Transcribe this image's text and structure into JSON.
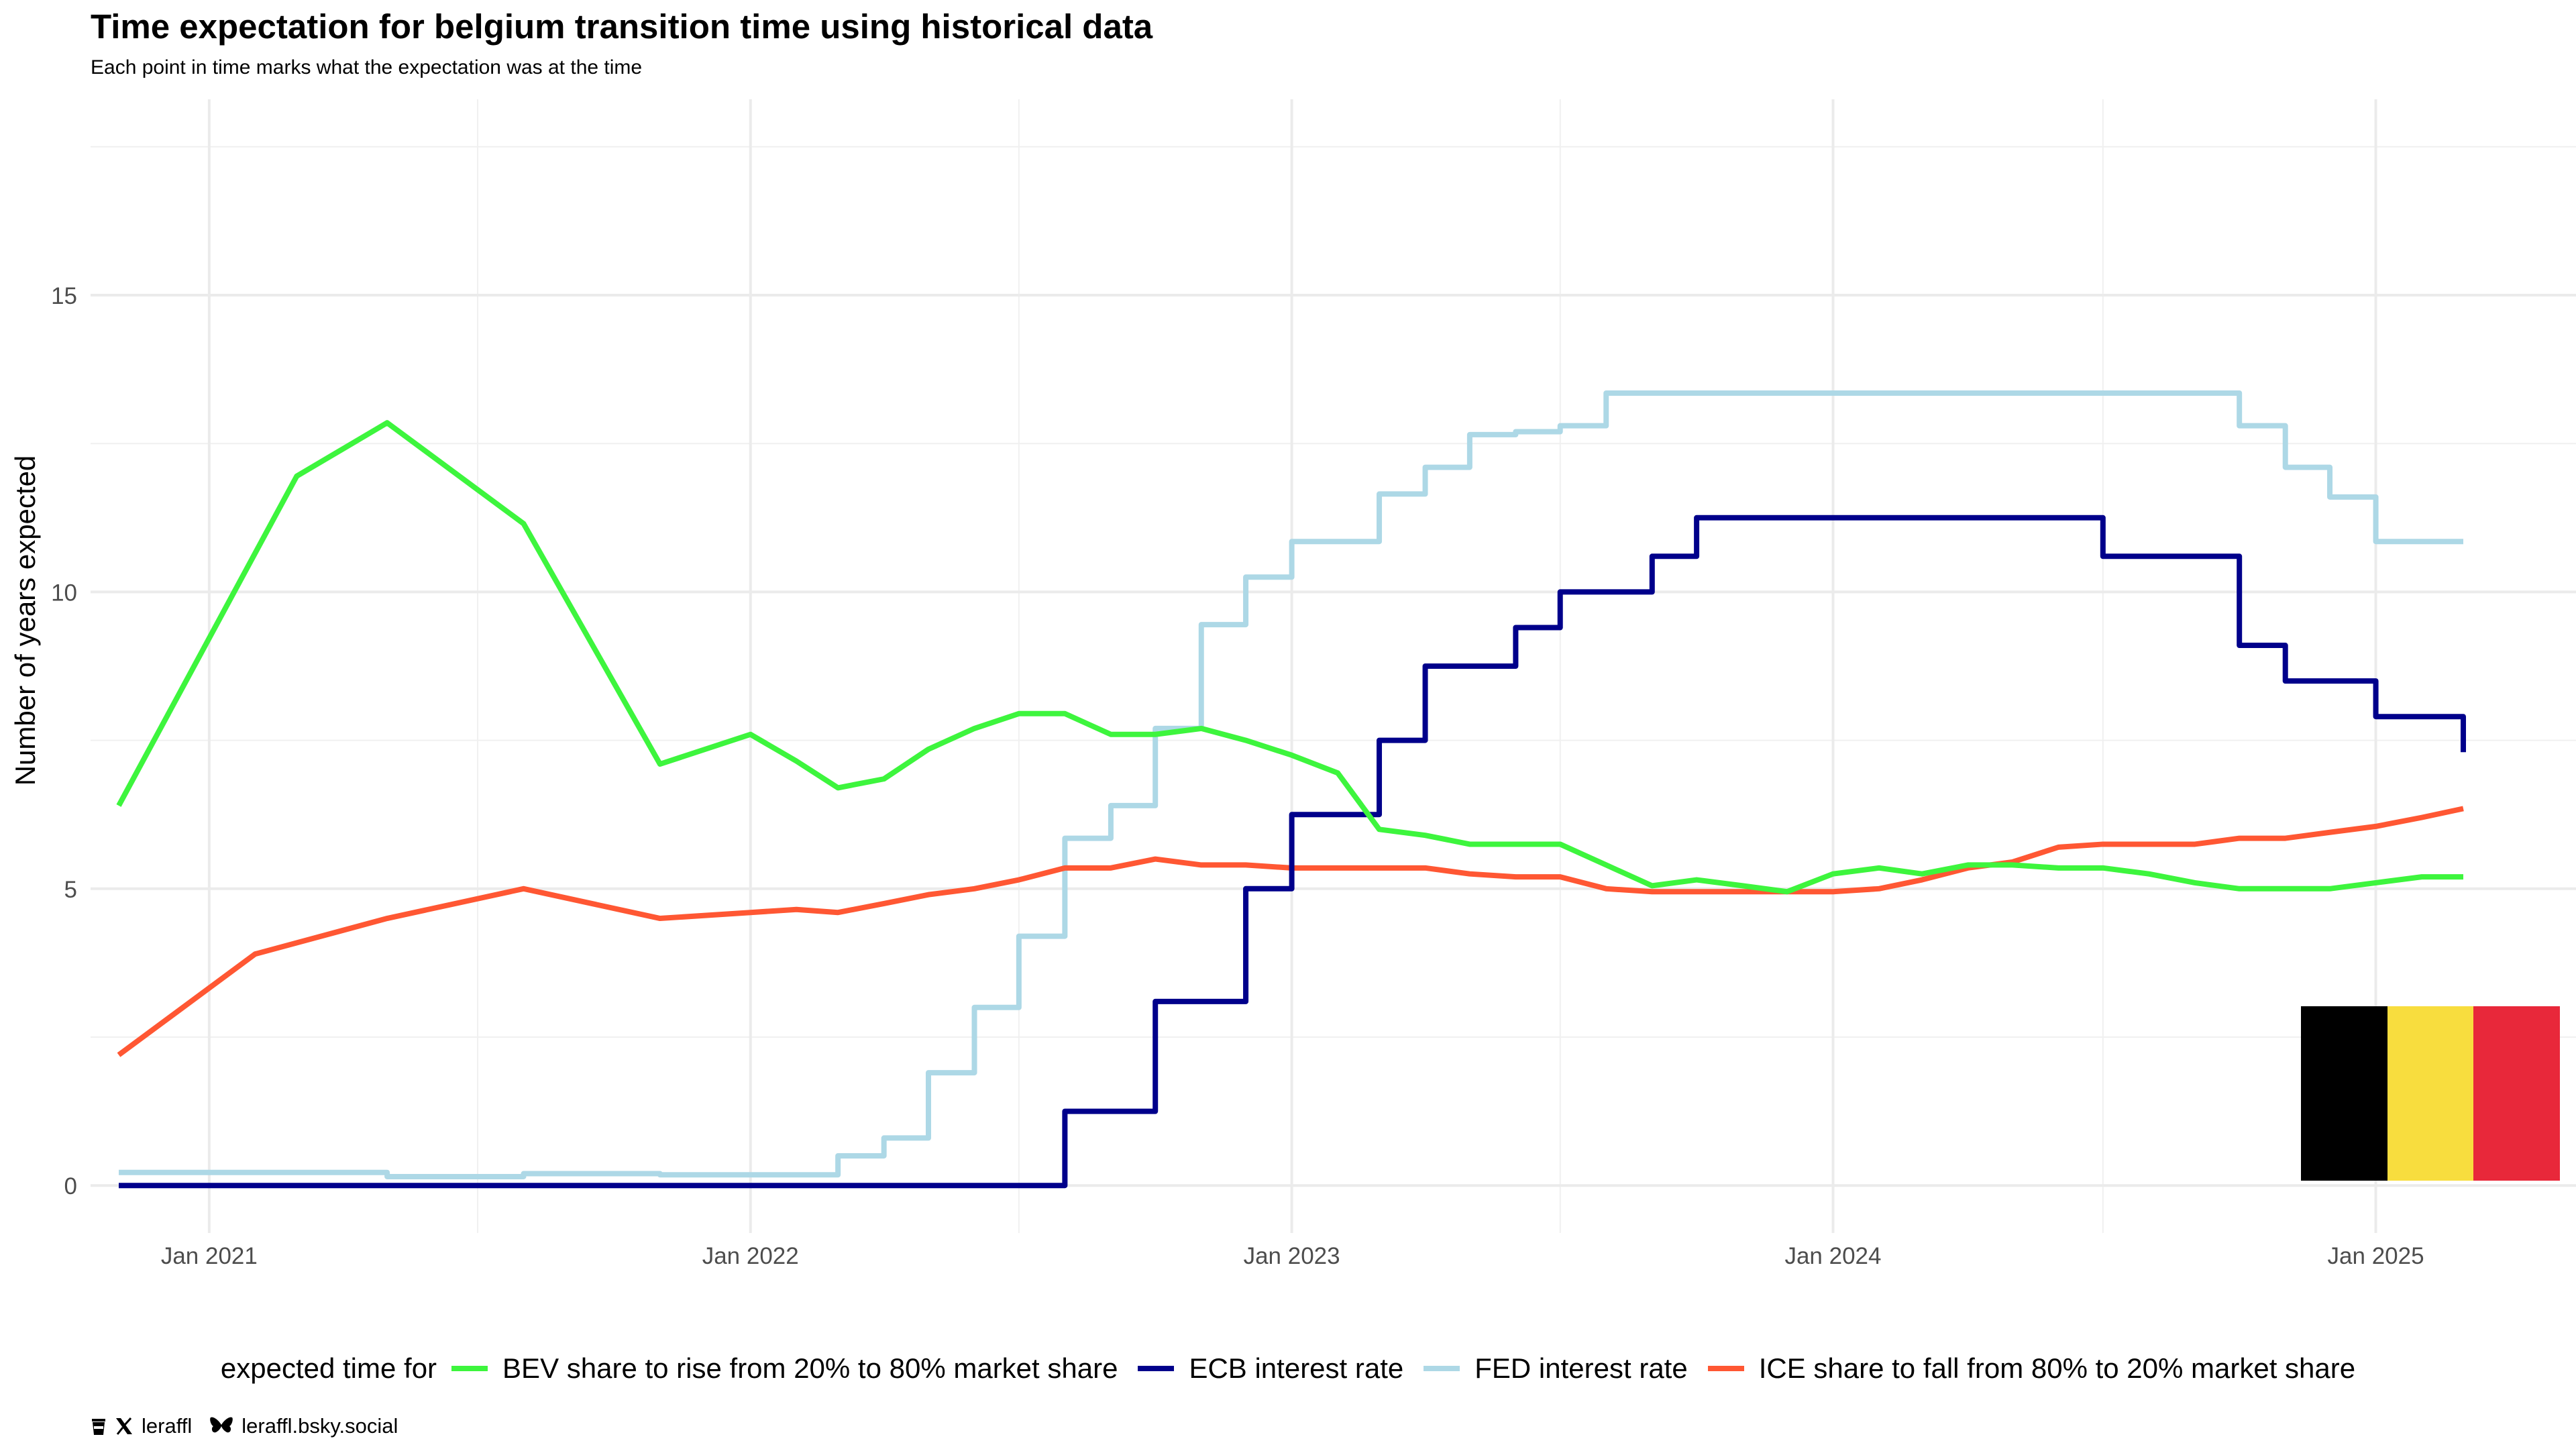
{
  "title": "Time expectation for belgium transition time using historical data",
  "subtitle": "Each point in time marks what the expectation was at the time",
  "legend": {
    "title": "expected time for",
    "items": [
      {
        "label": "BEV share to rise from 20% to 80% market share",
        "color": "#3DF53D"
      },
      {
        "label": "ECB interest rate",
        "color": "#00008B"
      },
      {
        "label": "FED interest rate",
        "color": "#ADD8E6"
      },
      {
        "label": "ICE share to fall from 80% to 20% market share",
        "color": "#FF5733"
      }
    ]
  },
  "credits": {
    "handle": "leraffl",
    "bsky": "leraffl.bsky.social",
    "icons": [
      "coffee-icon",
      "x-logo-icon",
      "butterfly-icon"
    ]
  },
  "flag": {
    "country": "Belgium",
    "colors": [
      "#000000",
      "#F8DD3E",
      "#E8283A"
    ]
  },
  "chart_data": {
    "type": "line",
    "ylabel": "Number of years expected",
    "xlabel": "",
    "x_type": "date",
    "xlim": [
      "2020-10-13",
      "2025-05-16"
    ],
    "ylim": [
      -0.8,
      18.3
    ],
    "x_ticks": [
      {
        "date": "2021-01-01",
        "label": "Jan 2021"
      },
      {
        "date": "2022-01-01",
        "label": "Jan 2022"
      },
      {
        "date": "2023-01-01",
        "label": "Jan 2023"
      },
      {
        "date": "2024-01-01",
        "label": "Jan 2024"
      },
      {
        "date": "2025-01-01",
        "label": "Jan 2025"
      }
    ],
    "x_minor_ticks": [
      "2021-07-01",
      "2022-07-01",
      "2023-07-01",
      "2024-07-01"
    ],
    "y_ticks": [
      0,
      5,
      10,
      15
    ],
    "y_minor_ticks": [
      2.5,
      7.5,
      12.5,
      17.5
    ],
    "grid": true,
    "legend_position": "bottom",
    "series": [
      {
        "name": "BEV share to rise from 20% to 80% market share",
        "color": "#3DF53D",
        "step": false,
        "x": [
          "2020-11-01",
          "2021-03-01",
          "2021-05-01",
          "2021-08-01",
          "2021-11-01",
          "2022-01-01",
          "2022-02-01",
          "2022-03-01",
          "2022-04-01",
          "2022-05-01",
          "2022-06-01",
          "2022-07-01",
          "2022-08-01",
          "2022-09-01",
          "2022-10-01",
          "2022-11-01",
          "2022-12-01",
          "2023-01-01",
          "2023-02-01",
          "2023-03-01",
          "2023-04-01",
          "2023-05-01",
          "2023-06-01",
          "2023-07-01",
          "2023-08-01",
          "2023-09-01",
          "2023-10-01",
          "2023-11-01",
          "2023-12-01",
          "2024-01-01",
          "2024-02-01",
          "2024-03-01",
          "2024-04-01",
          "2024-05-01",
          "2024-06-01",
          "2024-07-01",
          "2024-08-01",
          "2024-09-01",
          "2024-10-01",
          "2024-11-01",
          "2024-12-01",
          "2025-01-01",
          "2025-02-01",
          "2025-03-01"
        ],
        "values": [
          6.4,
          11.95,
          12.85,
          11.15,
          7.1,
          7.6,
          7.15,
          6.7,
          6.85,
          7.35,
          7.7,
          7.95,
          7.95,
          7.6,
          7.6,
          7.7,
          7.5,
          7.25,
          6.95,
          6.0,
          5.9,
          5.75,
          5.75,
          5.75,
          5.4,
          5.05,
          5.15,
          5.05,
          4.95,
          5.25,
          5.35,
          5.25,
          5.4,
          5.4,
          5.35,
          5.35,
          5.25,
          5.1,
          5.0,
          5.0,
          5.0,
          5.1,
          5.2,
          5.2
        ]
      },
      {
        "name": "ECB interest rate",
        "color": "#00008B",
        "step": true,
        "x": [
          "2020-11-01",
          "2022-08-01",
          "2022-10-01",
          "2022-12-01",
          "2023-01-01",
          "2023-03-01",
          "2023-04-01",
          "2023-06-01",
          "2023-07-01",
          "2023-09-01",
          "2023-10-01",
          "2024-07-01",
          "2024-10-01",
          "2024-11-01",
          "2024-12-01",
          "2025-01-01",
          "2025-03-01"
        ],
        "values": [
          0,
          1.25,
          3.1,
          5.0,
          6.25,
          7.5,
          8.75,
          9.4,
          10.0,
          10.6,
          11.25,
          10.6,
          9.1,
          8.5,
          8.5,
          7.9,
          7.3
        ]
      },
      {
        "name": "FED interest rate",
        "color": "#ADD8E6",
        "step": true,
        "x": [
          "2020-11-01",
          "2021-05-01",
          "2021-08-01",
          "2021-11-01",
          "2022-03-01",
          "2022-04-01",
          "2022-05-01",
          "2022-06-01",
          "2022-07-01",
          "2022-08-01",
          "2022-09-01",
          "2022-10-01",
          "2022-11-01",
          "2022-12-01",
          "2023-01-01",
          "2023-03-01",
          "2023-04-01",
          "2023-05-01",
          "2023-06-01",
          "2023-07-01",
          "2023-08-01",
          "2024-10-01",
          "2024-11-01",
          "2024-12-01",
          "2025-01-01",
          "2025-03-01"
        ],
        "values": [
          0.22,
          0.15,
          0.2,
          0.18,
          0.5,
          0.8,
          1.9,
          3.0,
          4.2,
          5.85,
          6.4,
          7.7,
          9.45,
          10.25,
          10.85,
          11.65,
          12.1,
          12.65,
          12.7,
          12.8,
          13.35,
          12.8,
          12.1,
          11.6,
          10.85,
          10.85
        ]
      },
      {
        "name": "ICE share to fall from 80% to 20% market share",
        "color": "#FF5733",
        "step": false,
        "x": [
          "2020-11-01",
          "2021-02-01",
          "2021-05-01",
          "2021-08-01",
          "2021-11-01",
          "2022-01-01",
          "2022-02-01",
          "2022-03-01",
          "2022-04-01",
          "2022-05-01",
          "2022-06-01",
          "2022-07-01",
          "2022-08-01",
          "2022-09-01",
          "2022-10-01",
          "2022-11-01",
          "2022-12-01",
          "2023-01-01",
          "2023-02-01",
          "2023-03-01",
          "2023-04-01",
          "2023-05-01",
          "2023-06-01",
          "2023-07-01",
          "2023-08-01",
          "2023-09-01",
          "2023-10-01",
          "2023-11-01",
          "2023-12-01",
          "2024-01-01",
          "2024-02-01",
          "2024-03-01",
          "2024-04-01",
          "2024-05-01",
          "2024-06-01",
          "2024-07-01",
          "2024-08-01",
          "2024-09-01",
          "2024-10-01",
          "2024-11-01",
          "2024-12-01",
          "2025-01-01",
          "2025-02-01",
          "2025-03-01"
        ],
        "values": [
          2.2,
          3.9,
          4.5,
          5.0,
          4.5,
          4.6,
          4.65,
          4.6,
          4.75,
          4.9,
          5.0,
          5.15,
          5.35,
          5.35,
          5.5,
          5.4,
          5.4,
          5.35,
          5.35,
          5.35,
          5.35,
          5.25,
          5.2,
          5.2,
          5.0,
          4.95,
          4.95,
          4.95,
          4.95,
          4.95,
          5.0,
          5.15,
          5.35,
          5.45,
          5.7,
          5.75,
          5.75,
          5.75,
          5.85,
          5.85,
          5.95,
          6.05,
          6.2,
          6.35
        ]
      }
    ]
  }
}
